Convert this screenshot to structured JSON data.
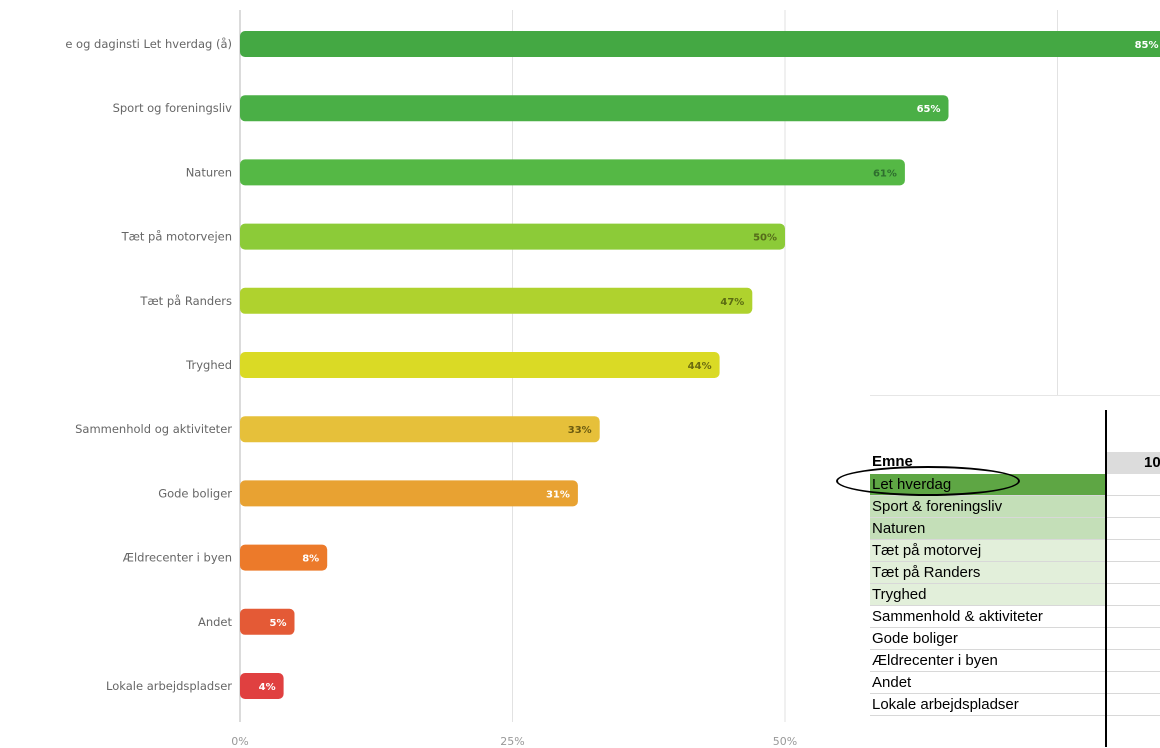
{
  "chart_data": {
    "type": "bar",
    "orientation": "horizontal",
    "categories": [
      "e og daginsti Let hverdag (å)",
      "Sport og foreningsliv",
      "Naturen",
      "Tæt på motorvejen",
      "Tæt på Randers",
      "Tryghed",
      "Sammenhold og aktiviteter",
      "Gode boliger",
      "Ældrecenter i byen",
      "Andet",
      "Lokale arbejdspladser"
    ],
    "values": [
      85,
      65,
      61,
      50,
      47,
      44,
      33,
      31,
      8,
      5,
      4
    ],
    "value_labels": [
      "85%",
      "65%",
      "61%",
      "50%",
      "47%",
      "44%",
      "33%",
      "31%",
      "8%",
      "5%",
      "4%"
    ],
    "colors": [
      "#44a843",
      "#4aaf46",
      "#55b845",
      "#8ccb38",
      "#afd22e",
      "#dada25",
      "#e6c03a",
      "#e8a232",
      "#ec7a2a",
      "#e45a36",
      "#e04040"
    ],
    "label_colors": [
      "#ffffff",
      "#ffffff",
      "#2e6e2e",
      "#556b1a",
      "#5b6b12",
      "#6b6b10",
      "#6b5b10",
      "#ffffff",
      "#ffffff",
      "#ffffff",
      "#ffffff"
    ],
    "xlim": [
      0,
      100
    ],
    "x_ticks": [
      "0%",
      "25%",
      "50%"
    ],
    "grid": true,
    "title": "",
    "xlabel": "",
    "ylabel": ""
  },
  "table": {
    "header": "Emne",
    "header_col2": "10",
    "rows": [
      {
        "label": "Let hverdag",
        "fill": "#5ea644"
      },
      {
        "label": "Sport & foreningsliv",
        "fill": "#c4dfb8"
      },
      {
        "label": "Naturen",
        "fill": "#c4dfb8"
      },
      {
        "label": "Tæt på motorvej",
        "fill": "#e2efda"
      },
      {
        "label": "Tæt på Randers",
        "fill": "#e2efda"
      },
      {
        "label": "Tryghed",
        "fill": "#e2efda"
      },
      {
        "label": "Sammenhold & aktiviteter",
        "fill": "#ffffff"
      },
      {
        "label": "Gode boliger",
        "fill": "#ffffff"
      },
      {
        "label": "Ældrecenter i byen",
        "fill": "#ffffff"
      },
      {
        "label": "Andet",
        "fill": "#ffffff"
      },
      {
        "label": "Lokale arbejdspladser",
        "fill": "#ffffff"
      }
    ]
  }
}
